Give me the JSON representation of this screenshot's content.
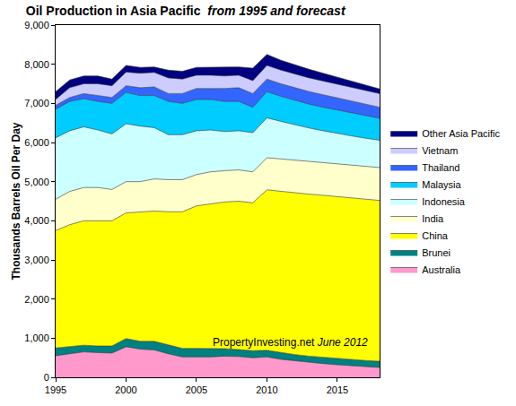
{
  "chart_data": {
    "type": "area",
    "stacked": true,
    "title": "Oil Production in Asia Pacific",
    "subtitle": "from 1995 and forecast",
    "y_label": "Thousands Barrels Oil Per Day",
    "annotations": [
      "PropertyInvesting.net",
      "June 2012"
    ],
    "x": [
      1995,
      1996,
      1997,
      1998,
      1999,
      2000,
      2001,
      2002,
      2003,
      2004,
      2005,
      2006,
      2007,
      2008,
      2009,
      2010,
      2011,
      2012,
      2013,
      2014,
      2015,
      2016,
      2017,
      2018
    ],
    "xlim": [
      1995,
      2018
    ],
    "xticks": [
      1995,
      2000,
      2005,
      2010,
      2015
    ],
    "ylim": [
      0,
      9000
    ],
    "yticks": [
      0,
      {
        "value": 1000,
        "label": "1,000"
      },
      {
        "value": 2000,
        "label": "2,000"
      },
      {
        "value": 3000,
        "label": "3,000"
      },
      {
        "value": 4000,
        "label": "4,000"
      },
      {
        "value": 5000,
        "label": "5,000"
      },
      {
        "value": 6000,
        "label": "6,000"
      },
      {
        "value": 7000,
        "label": "7,000"
      },
      {
        "value": 8000,
        "label": "8,000"
      },
      {
        "value": 9000,
        "label": "9,000"
      }
    ],
    "grid": false,
    "legend": "right",
    "series": [
      {
        "name": "Australia",
        "color": "#ff99cc",
        "values": [
          550,
          600,
          650,
          630,
          620,
          780,
          720,
          700,
          600,
          520,
          520,
          520,
          540,
          530,
          500,
          520,
          460,
          420,
          380,
          350,
          320,
          300,
          270,
          250
        ]
      },
      {
        "name": "Brunei",
        "color": "#008080",
        "values": [
          200,
          180,
          170,
          170,
          180,
          210,
          200,
          220,
          230,
          220,
          220,
          220,
          190,
          180,
          180,
          170,
          170,
          160,
          160,
          160,
          160,
          160,
          160,
          160
        ]
      },
      {
        "name": "China",
        "color": "#ffff00",
        "values": [
          3000,
          3120,
          3180,
          3200,
          3200,
          3210,
          3300,
          3330,
          3400,
          3490,
          3640,
          3690,
          3750,
          3790,
          3780,
          4100,
          4120,
          4140,
          4140,
          4140,
          4140,
          4120,
          4120,
          4110
        ]
      },
      {
        "name": "India",
        "color": "#ffffcc",
        "values": [
          800,
          850,
          850,
          850,
          800,
          800,
          780,
          820,
          820,
          820,
          800,
          820,
          800,
          800,
          790,
          820,
          830,
          830,
          830,
          830,
          830,
          840,
          840,
          840
        ]
      },
      {
        "name": "Indonesia",
        "color": "#ccffff",
        "values": [
          1570,
          1550,
          1550,
          1470,
          1420,
          1480,
          1420,
          1310,
          1150,
          1150,
          1120,
          1070,
          1000,
          1000,
          1000,
          1020,
          960,
          900,
          860,
          820,
          780,
          750,
          720,
          700
        ]
      },
      {
        "name": "Malaysia",
        "color": "#00ccff",
        "values": [
          730,
          750,
          720,
          730,
          780,
          800,
          780,
          820,
          850,
          800,
          800,
          780,
          770,
          750,
          650,
          670,
          640,
          630,
          610,
          600,
          600,
          590,
          580,
          560
        ]
      },
      {
        "name": "Thailand",
        "color": "#3366ff",
        "values": [
          100,
          100,
          130,
          150,
          150,
          170,
          200,
          220,
          200,
          250,
          280,
          280,
          330,
          350,
          350,
          320,
          320,
          320,
          320,
          320,
          310,
          300,
          290,
          280
        ]
      },
      {
        "name": "Vietnam",
        "color": "#ccccff",
        "values": [
          150,
          250,
          250,
          300,
          300,
          350,
          370,
          370,
          400,
          370,
          340,
          340,
          320,
          320,
          330,
          350,
          350,
          350,
          350,
          350,
          350,
          350,
          350,
          350
        ]
      },
      {
        "name": "Other Asia Pacific",
        "color": "#000080",
        "values": [
          200,
          200,
          200,
          200,
          170,
          170,
          150,
          140,
          200,
          200,
          200,
          200,
          220,
          210,
          320,
          280,
          250,
          230,
          220,
          200,
          180,
          160,
          140,
          120
        ]
      }
    ]
  }
}
